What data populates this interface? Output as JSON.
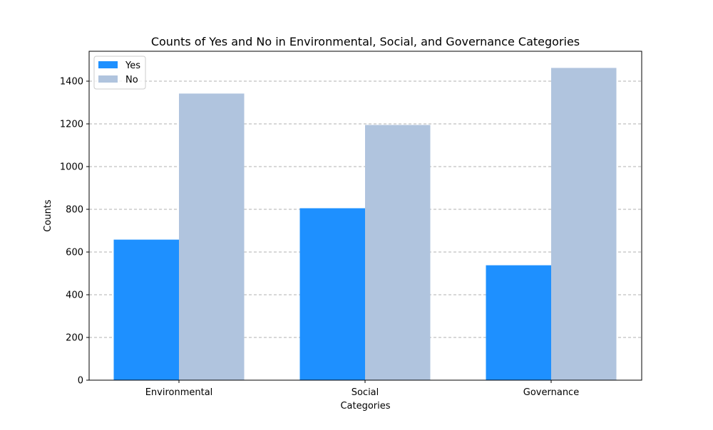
{
  "chart_data": {
    "type": "bar",
    "title": "Counts of Yes and No in Environmental, Social, and Governance Categories",
    "xlabel": "Categories",
    "ylabel": "Counts",
    "categories": [
      "Environmental",
      "Social",
      "Governance"
    ],
    "series": [
      {
        "name": "Yes",
        "values": [
          658,
          805,
          538
        ],
        "color": "#1e90ff"
      },
      {
        "name": "No",
        "values": [
          1342,
          1195,
          1462
        ],
        "color": "#b0c4de"
      }
    ],
    "ylim": [
      0,
      1540
    ],
    "yticks": [
      0,
      200,
      400,
      600,
      800,
      1000,
      1200,
      1400
    ],
    "grid": "y, dashed",
    "legend_position": "top-left"
  }
}
